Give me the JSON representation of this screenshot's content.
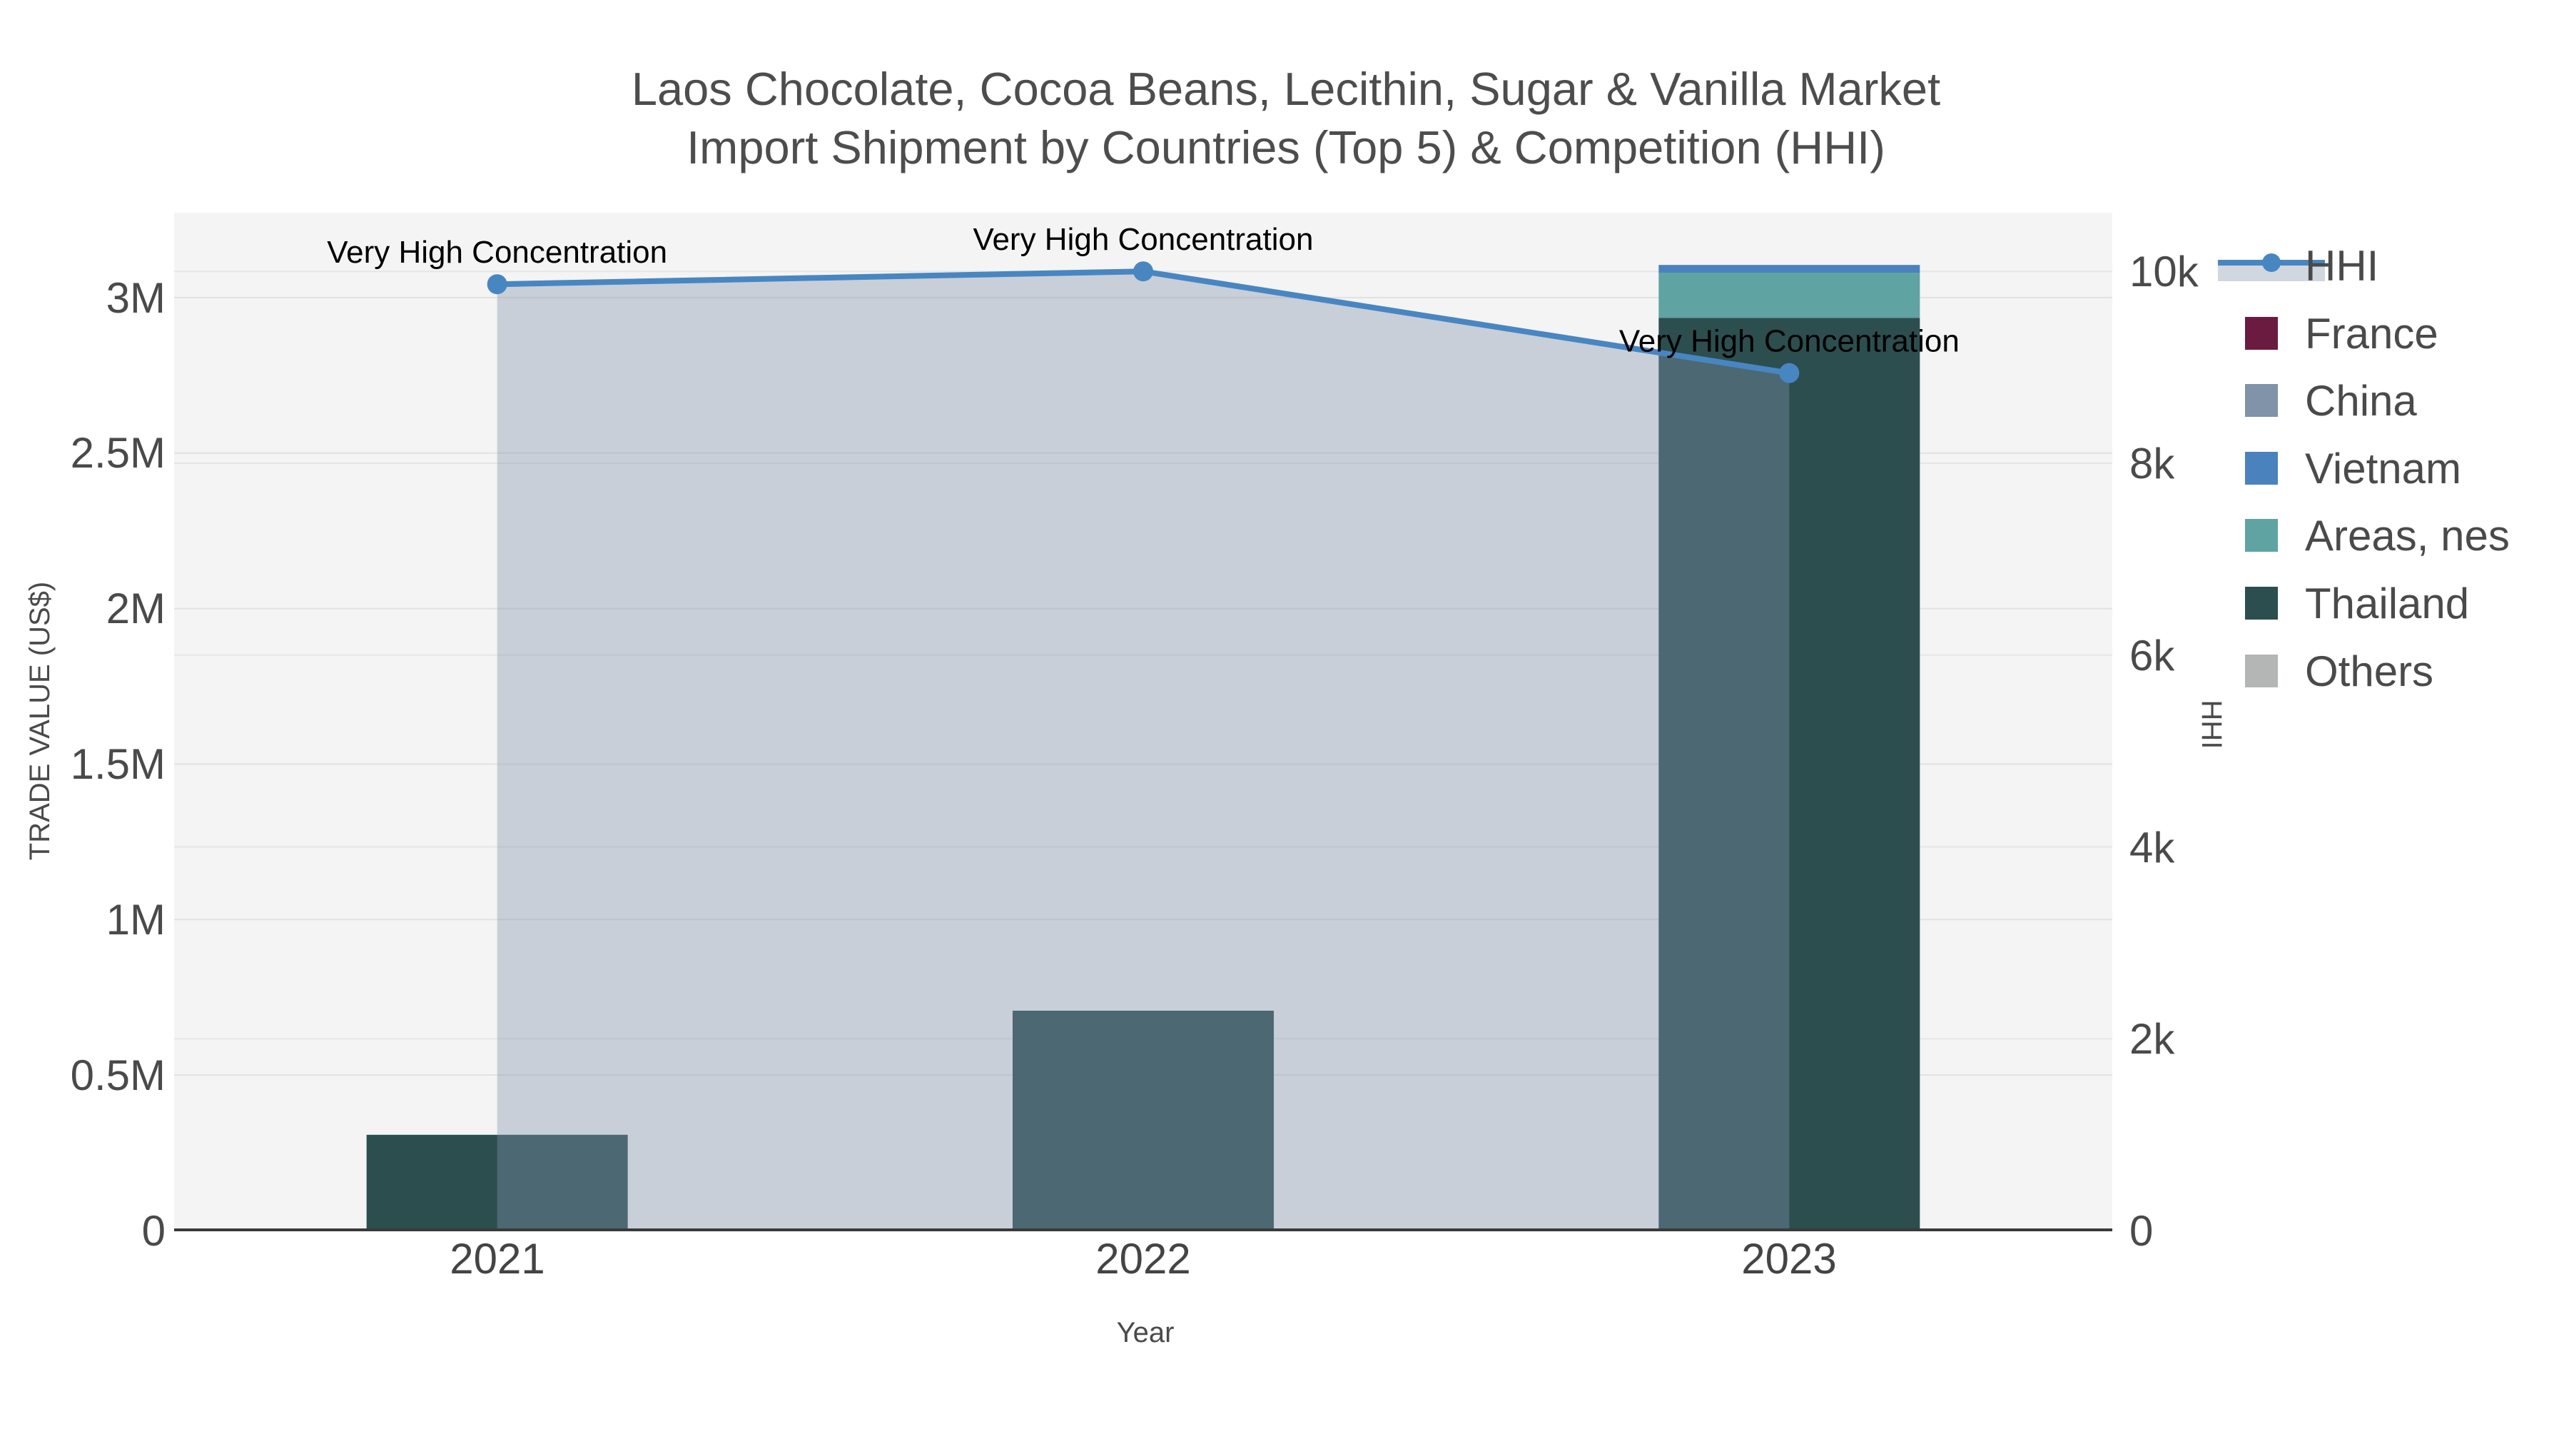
{
  "title": {
    "line1": "Laos Chocolate, Cocoa Beans, Lecithin, Sugar & Vanilla Market",
    "line2": "Import Shipment by Countries (Top 5) & Competition (HHI)"
  },
  "axes": {
    "x": {
      "title": "Year",
      "categories": [
        "2021",
        "2022",
        "2023"
      ]
    },
    "y_left": {
      "title": "TRADE VALUE (US$)",
      "ticks": [
        "0",
        "0.5M",
        "1M",
        "1.5M",
        "2M",
        "2.5M",
        "3M"
      ]
    },
    "y_right": {
      "title": "HHI",
      "ticks": [
        "0",
        "2k",
        "4k",
        "6k",
        "8k",
        "10k"
      ]
    }
  },
  "legend": {
    "hhi": {
      "label": "HHI",
      "line_color": "#4886C2",
      "band_color": "#D0D7DF"
    },
    "items": [
      {
        "label": "France",
        "color": "#6A1B3F"
      },
      {
        "label": "China",
        "color": "#8093A8"
      },
      {
        "label": "Vietnam",
        "color": "#4A82BD"
      },
      {
        "label": "Areas, nes",
        "color": "#5FA3A2"
      },
      {
        "label": "Thailand",
        "color": "#2C4E4F"
      },
      {
        "label": "Others",
        "color": "#B4B6B6"
      }
    ]
  },
  "annotation_text": "Very High Concentration",
  "chart_data": {
    "type": "bar",
    "subtype": "stacked-bars-with-line-overlay-dual-axis",
    "title": "Laos Chocolate, Cocoa Beans, Lecithin, Sugar & Vanilla Market — Import Shipment by Countries (Top 5) & Competition (HHI)",
    "xlabel": "Year",
    "ylabel": "TRADE VALUE (US$)",
    "ylabel_right": "HHI",
    "categories": [
      "2021",
      "2022",
      "2023"
    ],
    "ylim_left": [
      0,
      3270000
    ],
    "ylim_right": [
      0,
      10610
    ],
    "grid": true,
    "legend_position": "top-right",
    "series": [
      {
        "name": "Thailand",
        "type": "bar",
        "color": "#2C4E4F",
        "values": [
          308000,
          707000,
          2935000
        ]
      },
      {
        "name": "Areas, nes",
        "type": "bar",
        "color": "#5FA3A2",
        "values": [
          0,
          0,
          145000
        ]
      },
      {
        "name": "Vietnam",
        "type": "bar",
        "color": "#4A82BD",
        "values": [
          0,
          0,
          25000
        ]
      },
      {
        "name": "France",
        "type": "bar",
        "color": "#6A1B3F",
        "values": [
          0,
          0,
          0
        ]
      },
      {
        "name": "China",
        "type": "bar",
        "color": "#8093A8",
        "values": [
          0,
          0,
          0
        ]
      },
      {
        "name": "Others",
        "type": "bar",
        "color": "#B4B6B6",
        "values": [
          0,
          0,
          0
        ]
      }
    ],
    "line": {
      "name": "HHI",
      "axis": "right",
      "color": "#4886C2",
      "area_fill": "rgba(130,148,172,0.38)",
      "values": [
        9866,
        10000,
        8940
      ],
      "point_labels": [
        "Very High Concentration",
        "Very High Concentration",
        "Very High Concentration"
      ]
    }
  }
}
